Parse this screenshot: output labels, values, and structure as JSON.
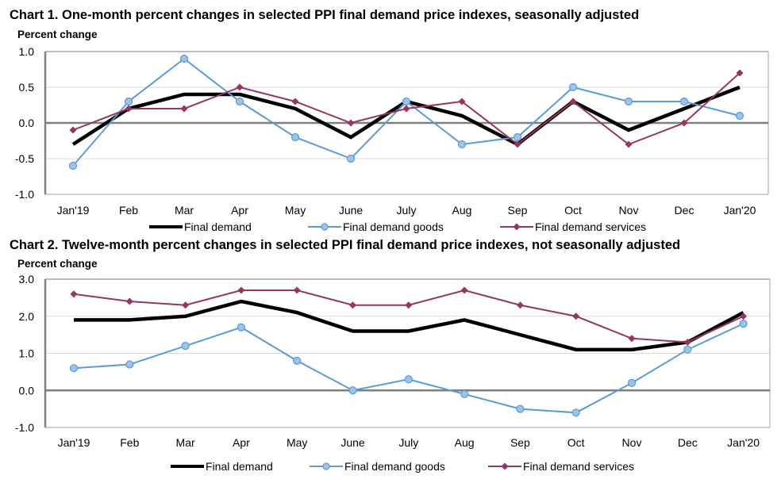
{
  "chart_data": [
    {
      "type": "line",
      "title": "Chart 1. One-month percent changes in selected PPI final demand price indexes, seasonally adjusted",
      "ylabel": "Percent change",
      "xlabel": "",
      "ylim": [
        -1.0,
        1.0
      ],
      "yticks": [
        "1.0",
        "0.5",
        "0.0",
        "-0.5",
        "-1.0"
      ],
      "ytick_values": [
        1.0,
        0.5,
        0.0,
        -0.5,
        -1.0
      ],
      "grid": true,
      "legend": "bottom",
      "categories": [
        "Jan'19",
        "Feb",
        "Mar",
        "Apr",
        "May",
        "June",
        "July",
        "Aug",
        "Sep",
        "Oct",
        "Nov",
        "Dec",
        "Jan'20"
      ],
      "series": [
        {
          "name": "Final demand",
          "color": "#000000",
          "marker": "none",
          "values": [
            -0.3,
            0.2,
            0.4,
            0.4,
            0.2,
            -0.2,
            0.3,
            0.1,
            -0.3,
            0.3,
            -0.1,
            0.2,
            0.5
          ]
        },
        {
          "name": "Final demand goods",
          "color": "#5B9BD5",
          "marker": "circle",
          "values": [
            -0.6,
            0.3,
            0.9,
            0.3,
            -0.2,
            -0.5,
            0.3,
            -0.3,
            -0.2,
            0.5,
            0.3,
            0.3,
            0.1
          ]
        },
        {
          "name": "Final demand services",
          "color": "#953562",
          "marker": "diamond",
          "values": [
            -0.1,
            0.2,
            0.2,
            0.5,
            0.3,
            0.0,
            0.2,
            0.3,
            -0.3,
            0.3,
            -0.3,
            0.0,
            0.7
          ]
        }
      ]
    },
    {
      "type": "line",
      "title": "Chart 2. Twelve-month percent changes in selected PPI final demand price indexes, not seasonally adjusted",
      "ylabel": "Percent change",
      "xlabel": "",
      "ylim": [
        -1.0,
        3.0
      ],
      "yticks": [
        "3.0",
        "2.0",
        "1.0",
        "0.0",
        "-1.0"
      ],
      "ytick_values": [
        3.0,
        2.0,
        1.0,
        0.0,
        -1.0
      ],
      "grid": true,
      "legend": "bottom",
      "categories": [
        "Jan'19",
        "Feb",
        "Mar",
        "Apr",
        "May",
        "June",
        "July",
        "Aug",
        "Sep",
        "Oct",
        "Nov",
        "Dec",
        "Jan'20"
      ],
      "series": [
        {
          "name": "Final demand",
          "color": "#000000",
          "marker": "none",
          "values": [
            1.9,
            1.9,
            2.0,
            2.4,
            2.1,
            1.6,
            1.6,
            1.9,
            1.5,
            1.1,
            1.1,
            1.3,
            2.1
          ]
        },
        {
          "name": "Final demand goods",
          "color": "#5B9BD5",
          "marker": "circle",
          "values": [
            0.6,
            0.7,
            1.2,
            1.7,
            0.8,
            0.0,
            0.3,
            -0.1,
            -0.5,
            -0.6,
            0.2,
            1.1,
            1.8
          ]
        },
        {
          "name": "Final demand services",
          "color": "#953562",
          "marker": "diamond",
          "values": [
            2.6,
            2.4,
            2.3,
            2.7,
            2.7,
            2.3,
            2.3,
            2.7,
            2.3,
            2.0,
            1.4,
            1.3,
            2.0
          ]
        }
      ]
    }
  ]
}
